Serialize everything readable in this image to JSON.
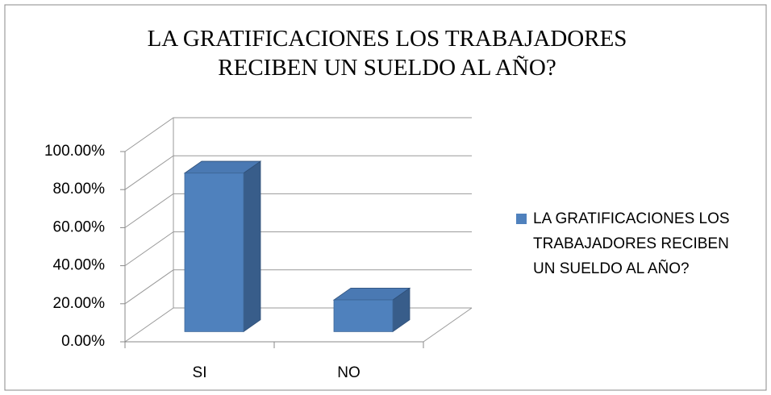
{
  "chart_data": {
    "type": "bar3d",
    "title": "LA GRATIFICACIONES LOS TRABAJADORES RECIBEN UN SUELDO AL AÑO?",
    "categories": [
      "SI",
      "NO"
    ],
    "series": [
      {
        "name": "LA GRATIFICACIONES LOS TRABAJADORES RECIBEN UN SUELDO AL AÑO?",
        "color": "#4f81bd",
        "values": [
          83.33,
          16.67
        ]
      }
    ],
    "ylim": [
      0,
      100
    ],
    "yticks": [
      {
        "value": 0,
        "label": "0.00%"
      },
      {
        "value": 20,
        "label": "20.00%"
      },
      {
        "value": 40,
        "label": "40.00%"
      },
      {
        "value": 60,
        "label": "60.00%"
      },
      {
        "value": 80,
        "label": "80.00%"
      },
      {
        "value": 100,
        "label": "100.00%"
      }
    ],
    "grid": true,
    "legend": "right"
  }
}
